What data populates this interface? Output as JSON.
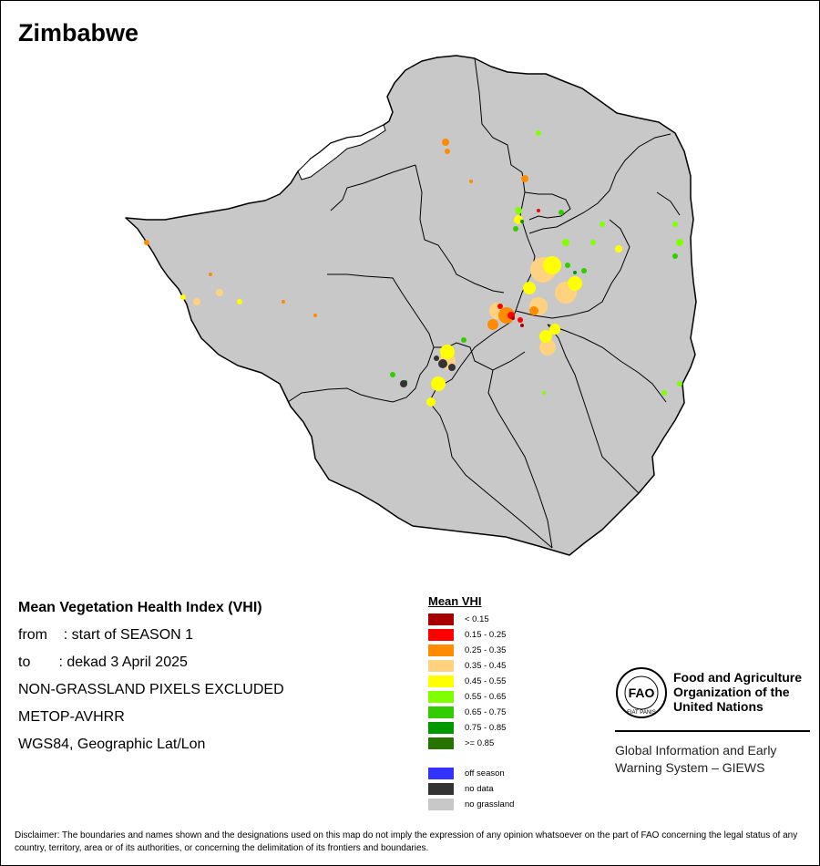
{
  "title": "Zimbabwe",
  "info": {
    "heading": "Mean Vegetation Health Index (VHI)",
    "from": "from    : start of SEASON 1",
    "to": "to       : dekad 3 April 2025",
    "exclusion": "NON-GRASSLAND PIXELS EXCLUDED",
    "sensor": "METOP-AVHRR",
    "projection": "WGS84, Geographic Lat/Lon"
  },
  "legend": {
    "title": "Mean VHI",
    "classes": [
      {
        "label": "< 0.15",
        "color": "#a80000"
      },
      {
        "label": "0.15 - 0.25",
        "color": "#ff0000"
      },
      {
        "label": "0.25 - 0.35",
        "color": "#ff8c00"
      },
      {
        "label": "0.35 - 0.45",
        "color": "#ffd27f"
      },
      {
        "label": "0.45 - 0.55",
        "color": "#ffff00"
      },
      {
        "label": "0.55 - 0.65",
        "color": "#7fff00"
      },
      {
        "label": "0.65 - 0.75",
        "color": "#33cc00"
      },
      {
        "label": "0.75 - 0.85",
        "color": "#009900"
      },
      {
        "label": ">= 0.85",
        "color": "#267300"
      }
    ],
    "extra": [
      {
        "label": "off season",
        "color": "#3333ff"
      },
      {
        "label": "no data",
        "color": "#333333"
      },
      {
        "label": "no grassland",
        "color": "#c8c8c8"
      }
    ]
  },
  "fao": {
    "name": "Food and Agriculture Organization of the United Nations",
    "logo_letters": "FAO",
    "logo_motto": "FIAT PANIS",
    "giews": "Global Information and Early Warning System – GIEWS"
  },
  "disclaimer": "Disclaimer: The boundaries and names shown and the designations used on this map do not imply the expression of any opinion whatsoever on the part of FAO concerning the legal status of any country, territory, area or of its authorities, or concerning the delimitation of its frontiers and boundaries.",
  "colors": {
    "country_fill": "#c8c8c8",
    "boundary": "#000000",
    "lake": "#ffffff"
  }
}
